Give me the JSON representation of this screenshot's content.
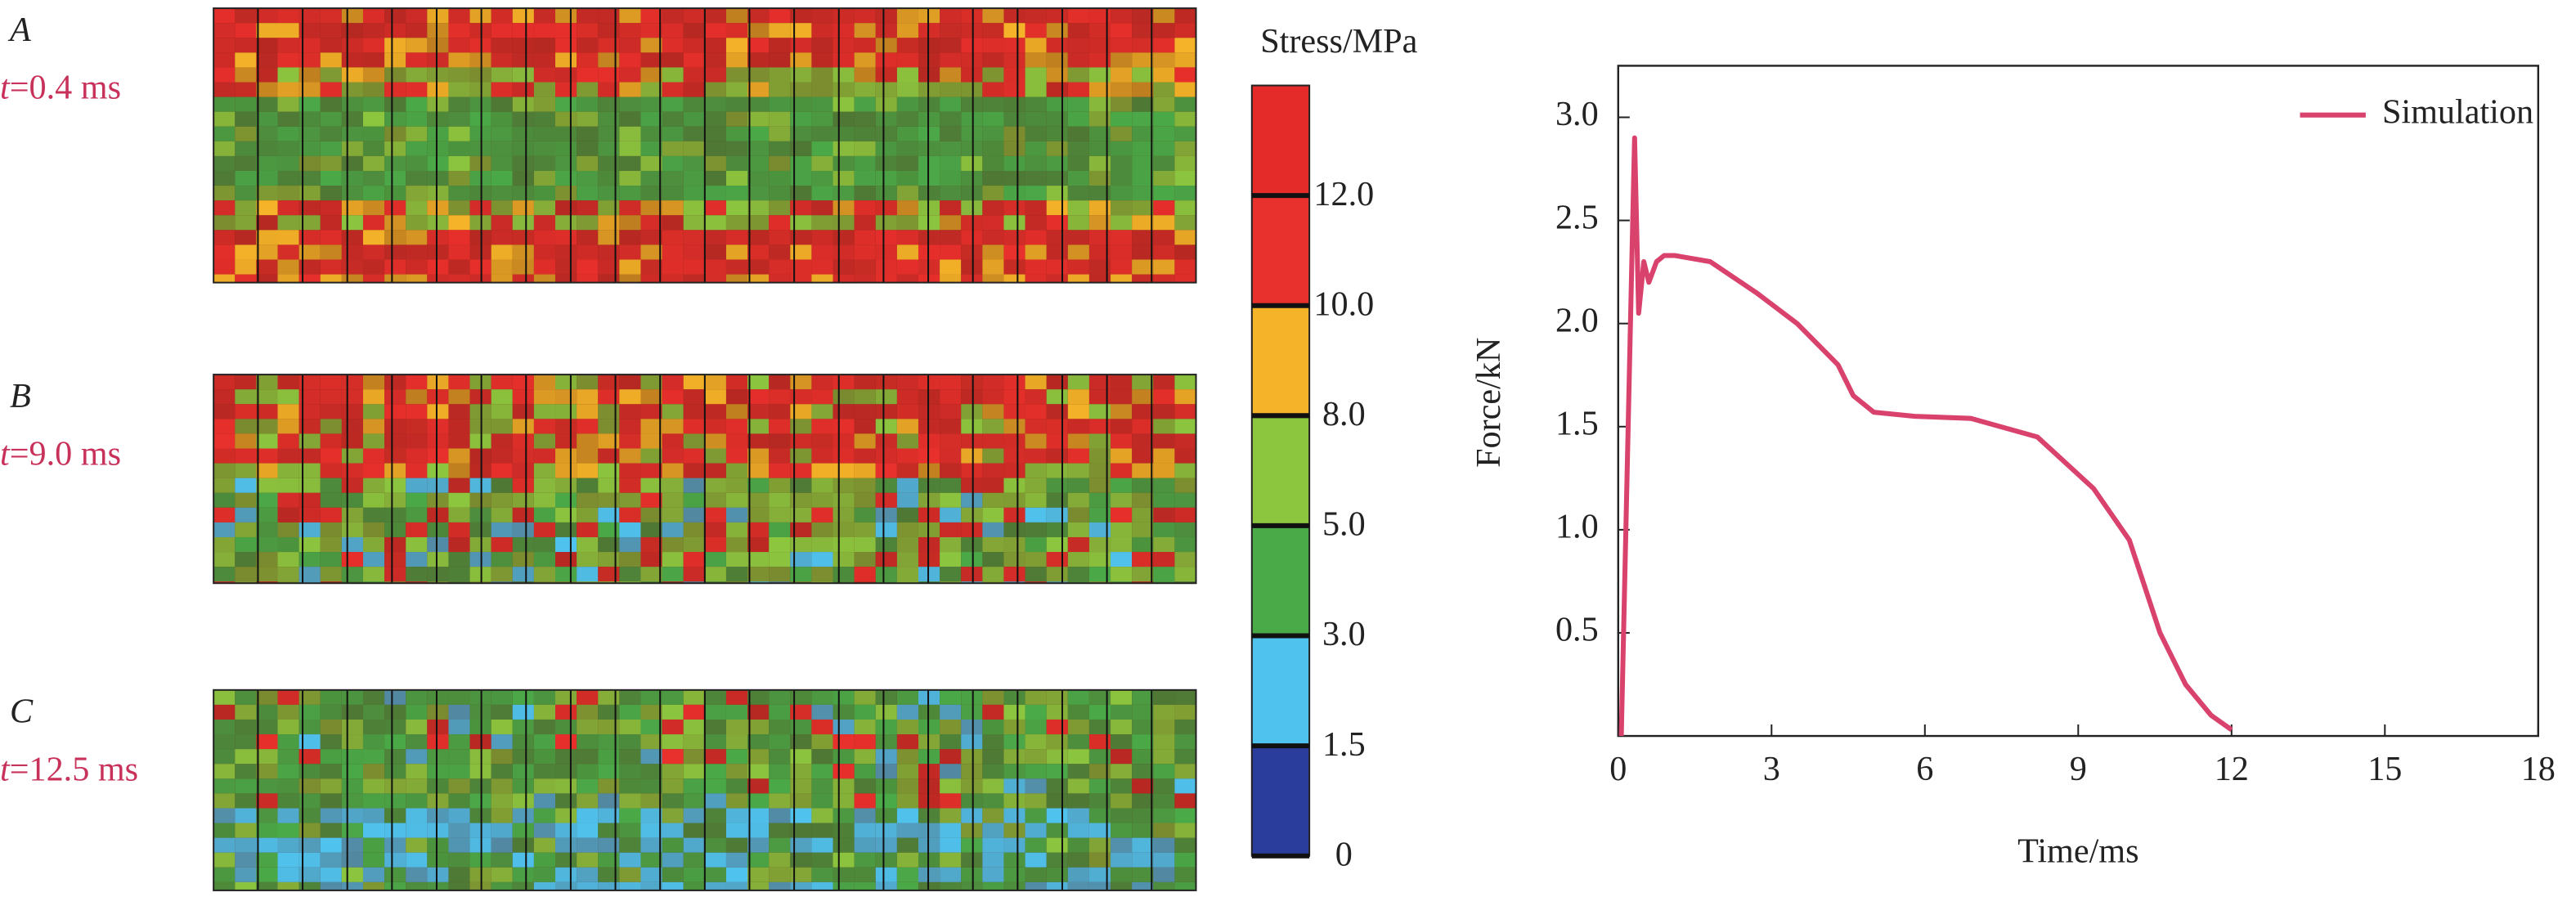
{
  "panels": [
    {
      "label": "A",
      "time_var": "t",
      "time": "=0.4 ms"
    },
    {
      "label": "B",
      "time_var": "t",
      "time": "=9.0 ms"
    },
    {
      "label": "C",
      "time_var": "t",
      "time": "=12.5 ms"
    }
  ],
  "colorbar": {
    "title": "Stress/MPa",
    "ticks": [
      0,
      {
        "value": 1.5,
        "label": "1.5"
      },
      {
        "value": 3,
        "label": "3.0"
      },
      {
        "value": 5,
        "label": "5.0"
      },
      {
        "value": 8,
        "label": "8.0"
      },
      {
        "value": 10,
        "label": "10.0"
      },
      {
        "value": 12,
        "label": "12.0"
      }
    ],
    "colors": [
      "#2b3d9c",
      "#4fc3ee",
      "#4aaa48",
      "#8cc63f",
      "#f4b328",
      "#e8302c",
      "#e52a2a"
    ]
  },
  "chart_data": {
    "type": "line",
    "xlabel": "Time/ms",
    "ylabel": "Force/kN",
    "x": [
      0.06,
      0.32,
      0.4,
      0.5,
      0.6,
      0.75,
      0.9,
      1.1,
      1.8,
      2.7,
      3.5,
      4.3,
      4.6,
      5.0,
      5.8,
      6.9,
      8.2,
      9.3,
      10.0,
      10.6,
      11.1,
      11.6,
      12.0
    ],
    "series": [
      {
        "name": "Simulation",
        "color": "#d9426c",
        "values": [
          0,
          2.9,
          2.05,
          2.3,
          2.2,
          2.3,
          2.33,
          2.33,
          2.3,
          2.15,
          2.0,
          1.8,
          1.65,
          1.57,
          1.55,
          1.54,
          1.45,
          1.2,
          0.95,
          0.5,
          0.25,
          0.1,
          0.03
        ]
      }
    ],
    "xlim": [
      0,
      18
    ],
    "ylim": [
      0,
      3.25
    ],
    "xticks": [
      0,
      3,
      6,
      9,
      12,
      15,
      18
    ],
    "yticks": [
      0.5,
      {
        "value": 1,
        "label": "1.0"
      },
      1.5,
      {
        "value": 2,
        "label": "2.0"
      },
      2.5,
      {
        "value": 3,
        "label": "3.0"
      }
    ],
    "legend": "upper right"
  }
}
